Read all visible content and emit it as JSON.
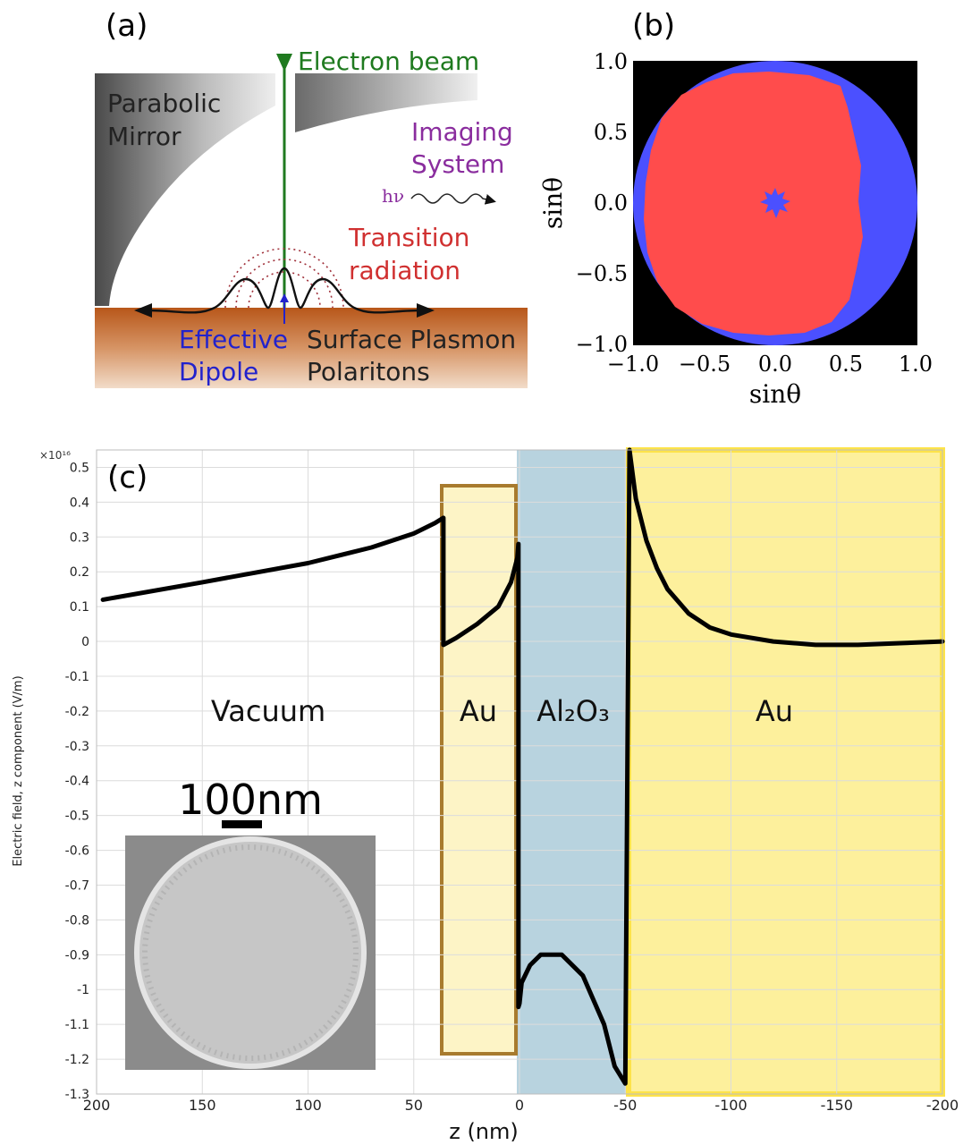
{
  "panel_a": {
    "label": "(a)",
    "electron_beam": "Electron beam",
    "mirror_line1": "Parabolic",
    "mirror_line2": "Mirror",
    "imaging_line1": "Imaging",
    "imaging_line2": "System",
    "hv": "hν",
    "transition_line1": "Transition",
    "transition_line2": "radiation",
    "dipole_line1": "Effective",
    "dipole_line2": "Dipole",
    "spp_line1": "Surface Plasmon",
    "spp_line2": "Polaritons",
    "colors": {
      "beam": "#1f7a1f",
      "imaging": "#8a2d9e",
      "transition": "#d03030",
      "dipole": "#2222cc",
      "metal": "#b8571a"
    }
  },
  "panel_b": {
    "label": "(b)",
    "xlabel": "sinθ",
    "ylabel": "sinθ",
    "xticks": [
      "−1.0",
      "−0.5",
      "0.0",
      "0.5",
      "1.0"
    ],
    "yticks": [
      "1.0",
      "0.5",
      "0.0",
      "−0.5",
      "−1.0"
    ],
    "colors": {
      "background": "#000000",
      "disk": "#4b50ff",
      "region": "#ff4c4c"
    }
  },
  "panel_c": {
    "label": "(c)",
    "exponent": "×10¹⁶",
    "xlabel": "z (nm)",
    "ylabel": "Electric field, z component (V/m)",
    "region_labels": {
      "vacuum": "Vacuum",
      "au_film": "Au",
      "al2o3": "Al₂O₃",
      "au_substrate": "Au"
    },
    "scale_bar": "100nm",
    "colors": {
      "au_film_fill": "#fdf4c6",
      "au_film_border": "#a87b2e",
      "al2o3_fill": "#b8d3df",
      "au_sub_fill": "#fdf09c",
      "au_sub_border": "#fde34a"
    }
  },
  "chart_data": {
    "type": "line",
    "title": "",
    "xlabel": "z (nm)",
    "ylabel": "Electric field, z component (V/m)",
    "y_multiplier": "×10¹⁶",
    "xlim": [
      200,
      -200
    ],
    "ylim": [
      -1.3,
      0.55
    ],
    "x_reversed": true,
    "xticks": [
      200,
      150,
      100,
      50,
      0,
      -50,
      -100,
      -150,
      -200
    ],
    "yticks": [
      0.5,
      0.4,
      0.3,
      0.2,
      0.1,
      0,
      -0.1,
      -0.2,
      -0.3,
      -0.4,
      -0.5,
      -0.6,
      -0.7,
      -0.8,
      -0.9,
      -1,
      -1.1,
      -1.2,
      -1.3
    ],
    "grid": true,
    "series": [
      {
        "x": [
          197,
          150,
          100,
          70,
          50,
          40,
          36,
          36,
          30,
          20,
          10,
          4,
          1,
          0.5,
          0.5,
          0,
          -1,
          -5,
          -10,
          -20,
          -30,
          -40,
          -45,
          -50,
          -52,
          -55,
          -60,
          -65,
          -70,
          -80,
          -90,
          -100,
          -120,
          -140,
          -160,
          -180,
          -200
        ],
        "y": [
          0.12,
          0.17,
          0.225,
          0.27,
          0.31,
          0.34,
          0.355,
          -0.01,
          0.01,
          0.05,
          0.1,
          0.17,
          0.24,
          0.28,
          -1.05,
          -1.04,
          -0.98,
          -0.93,
          -0.9,
          -0.9,
          -0.96,
          -1.1,
          -1.22,
          -1.27,
          0.55,
          0.41,
          0.29,
          0.21,
          0.15,
          0.08,
          0.04,
          0.02,
          0.0,
          -0.01,
          -0.01,
          -0.005,
          0.0
        ]
      }
    ]
  }
}
